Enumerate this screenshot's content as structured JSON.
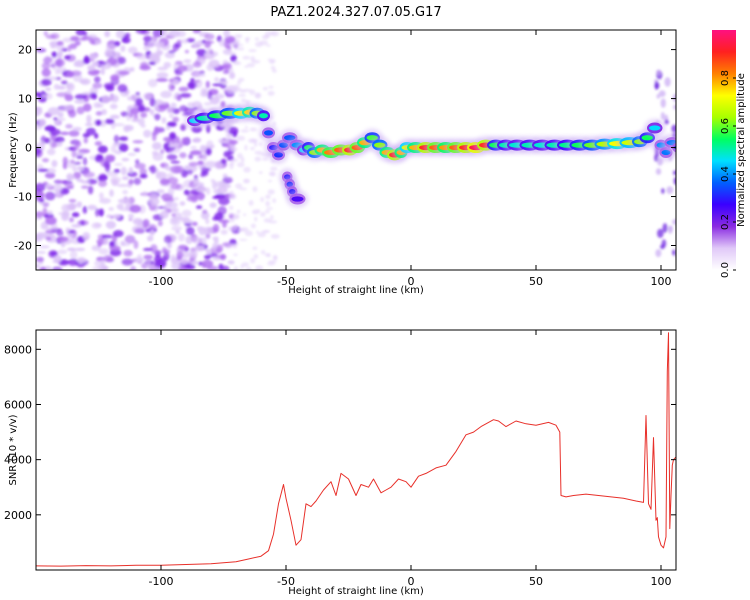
{
  "figure": {
    "title": "PAZ1.2024.327.07.05.G17"
  },
  "colorbar": {
    "label": "Normalized spectral amplitude",
    "ticks": [
      "0.0",
      "0.2",
      "0.4",
      "0.6",
      "0.8"
    ],
    "tick_values": [
      0.0,
      0.2,
      0.4,
      0.6,
      0.8
    ],
    "range": [
      0,
      1
    ],
    "colormap": [
      "#ffffff",
      "#e0c8f8",
      "#8a2be2",
      "#3a00ff",
      "#0060ff",
      "#00e0ff",
      "#00ff60",
      "#a8ff00",
      "#ffff00",
      "#ff8000",
      "#ff2020",
      "#ff1080"
    ]
  },
  "chart_data": [
    {
      "type": "heatmap",
      "xlabel": "Height of straight line (km)",
      "ylabel": "Frequency (Hz)",
      "xlim": [
        -150,
        106
      ],
      "ylim": [
        -25,
        24
      ],
      "xticks": [
        "-100",
        "-50",
        "0",
        "50",
        "100"
      ],
      "xtick_values": [
        -100,
        -50,
        0,
        50,
        100
      ],
      "yticks": [
        "20",
        "10",
        "0",
        "-10",
        "-20"
      ],
      "ytick_values": [
        20,
        10,
        0,
        -10,
        -20
      ],
      "grid": false,
      "ridge": {
        "x": [
          -88,
          -85,
          -80,
          -75,
          -70,
          -66,
          -63,
          -60,
          -58,
          -56,
          -54,
          -52,
          -50,
          -47,
          -44,
          -42,
          -40,
          -37,
          -34,
          -30,
          -26,
          -23,
          -20,
          -17,
          -14,
          -11,
          -8,
          -5,
          -3,
          0,
          4,
          8,
          12,
          16,
          20,
          24,
          28,
          32,
          36,
          40,
          45,
          50,
          55,
          60,
          65,
          70,
          75,
          80,
          85,
          90,
          93,
          96,
          99,
          101,
          103,
          106
        ],
        "frequency": [
          5.5,
          6,
          6.5,
          7,
          7,
          7.2,
          7,
          6.5,
          3,
          0,
          -1.5,
          0.5,
          2,
          0.5,
          -0.5,
          0,
          -1,
          -0.5,
          -1,
          -0.5,
          -0.5,
          0,
          1,
          2,
          0.5,
          -1,
          -1.5,
          -1,
          0,
          0,
          0,
          0,
          0,
          0,
          0,
          0,
          0.5,
          0.5,
          0.5,
          0.5,
          0.5,
          0.5,
          0.5,
          0.5,
          0.5,
          0.5,
          0.7,
          0.8,
          1,
          1.2,
          2,
          4,
          0.5,
          -1,
          1,
          0
        ],
        "amplitude": [
          0.45,
          0.5,
          0.55,
          0.6,
          0.7,
          0.75,
          0.62,
          0.5,
          0.35,
          0.3,
          0.32,
          0.35,
          0.35,
          0.4,
          0.45,
          0.55,
          0.62,
          0.78,
          0.82,
          0.85,
          0.9,
          0.85,
          0.78,
          0.58,
          0.62,
          0.78,
          0.9,
          0.78,
          0.7,
          0.78,
          0.9,
          0.85,
          0.8,
          0.85,
          0.9,
          0.95,
          0.9,
          0.55,
          0.5,
          0.48,
          0.5,
          0.48,
          0.5,
          0.52,
          0.55,
          0.6,
          0.65,
          0.72,
          0.68,
          0.62,
          0.55,
          0.45,
          0.4,
          0.38,
          0.38,
          0.35
        ]
      },
      "side_blob": {
        "x": [
          -50,
          -49,
          -48,
          -47
        ],
        "frequency": [
          -6,
          -7.5,
          -9,
          -10.5
        ],
        "amplitude": [
          0.3,
          0.32,
          0.3,
          0.25
        ]
      }
    },
    {
      "type": "line",
      "xlabel": "Height of straight line (km)",
      "ylabel": "SNR (10 * v/v)",
      "xlim": [
        -150,
        106
      ],
      "ylim": [
        0,
        8700
      ],
      "xticks": [
        "-100",
        "-50",
        "0",
        "50",
        "100"
      ],
      "xtick_values": [
        -100,
        -50,
        0,
        50,
        100
      ],
      "yticks": [
        "8000",
        "6000",
        "4000",
        "2000"
      ],
      "ytick_values": [
        8000,
        6000,
        4000,
        2000
      ],
      "grid": false,
      "series": [
        {
          "color": "#e8302a",
          "x": [
            -150,
            -140,
            -130,
            -120,
            -110,
            -100,
            -90,
            -80,
            -75,
            -70,
            -65,
            -60,
            -57,
            -55,
            -53,
            -51,
            -50,
            -48,
            -46,
            -44,
            -42,
            -40,
            -38,
            -35,
            -32,
            -30,
            -28,
            -25,
            -22,
            -20,
            -17,
            -15,
            -12,
            -10,
            -8,
            -5,
            -2,
            0,
            3,
            6,
            10,
            14,
            18,
            22,
            25,
            28,
            30,
            33,
            35,
            38,
            42,
            46,
            50,
            55,
            58,
            59.5,
            60,
            62,
            65,
            70,
            75,
            80,
            85,
            90,
            93,
            94,
            95,
            96,
            97,
            98,
            98.5,
            99,
            100,
            101,
            102,
            102.5,
            103,
            103.5,
            104,
            104.5,
            105,
            106
          ],
          "values": [
            150,
            140,
            160,
            150,
            170,
            170,
            200,
            230,
            260,
            300,
            400,
            500,
            700,
            1300,
            2400,
            3100,
            2600,
            1800,
            900,
            1100,
            2400,
            2300,
            2500,
            2900,
            3200,
            2700,
            3500,
            3300,
            2700,
            3100,
            3000,
            3300,
            2800,
            2900,
            3000,
            3300,
            3200,
            3000,
            3400,
            3500,
            3700,
            3800,
            4300,
            4900,
            5000,
            5200,
            5300,
            5450,
            5400,
            5200,
            5400,
            5300,
            5250,
            5350,
            5250,
            5000,
            2700,
            2650,
            2700,
            2750,
            2700,
            2650,
            2600,
            2500,
            2450,
            5600,
            2400,
            2200,
            4800,
            1800,
            1900,
            1200,
            900,
            800,
            1200,
            7200,
            8600,
            1500,
            2700,
            3800,
            4000,
            4100
          ]
        }
      ]
    }
  ]
}
